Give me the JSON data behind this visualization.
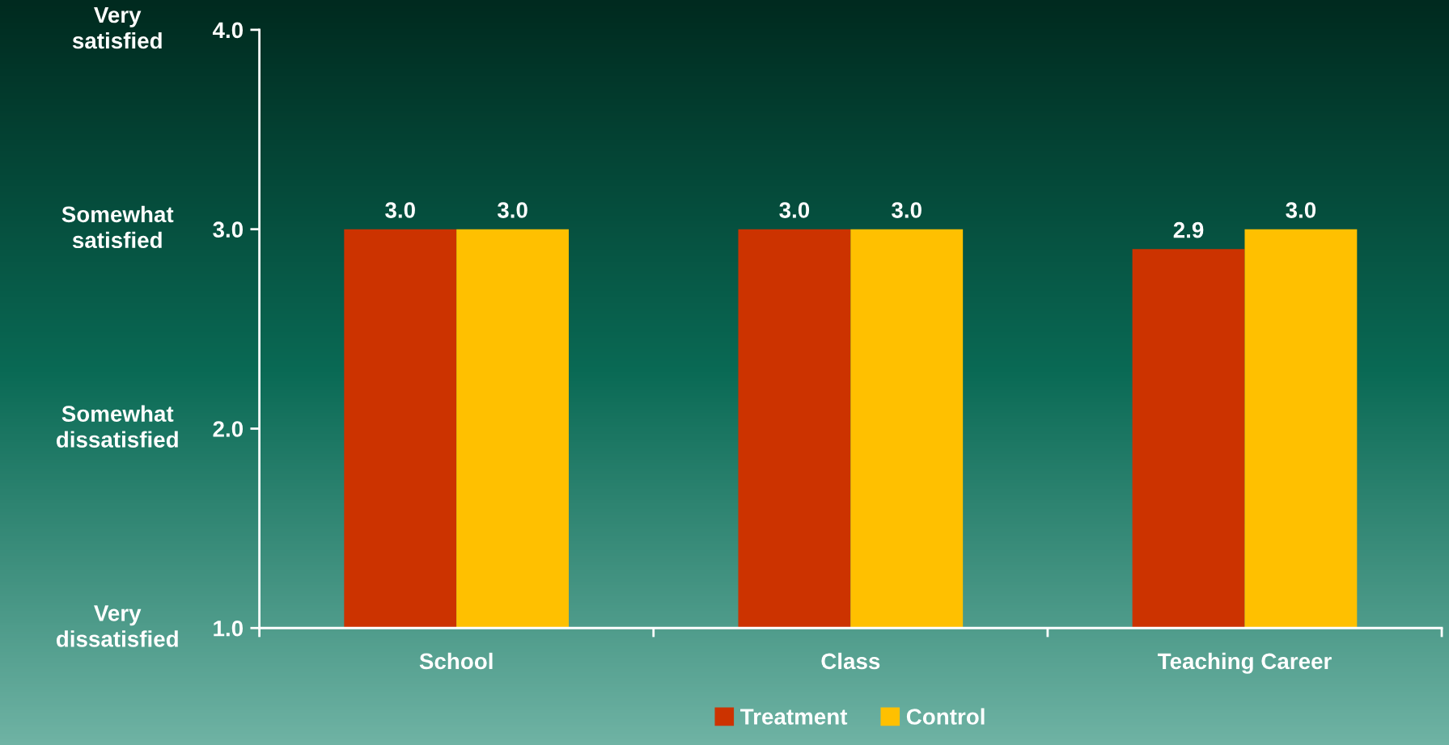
{
  "chart_data": {
    "type": "bar",
    "categories": [
      "School",
      "Class",
      "Teaching Career"
    ],
    "series": [
      {
        "name": "Treatment",
        "color": "#cc3300",
        "values": [
          3.0,
          3.0,
          2.9
        ],
        "value_labels": [
          "3.0",
          "3.0",
          "2.9"
        ]
      },
      {
        "name": "Control",
        "color": "#ffc000",
        "values": [
          3.0,
          3.0,
          3.0
        ],
        "value_labels": [
          "3.0",
          "3.0",
          "3.0"
        ]
      }
    ],
    "ylim": [
      1.0,
      4.0
    ],
    "yticks": [
      {
        "value": 1.0,
        "label": "1.0"
      },
      {
        "value": 2.0,
        "label": "2.0"
      },
      {
        "value": 3.0,
        "label": "3.0"
      },
      {
        "value": 4.0,
        "label": "4.0"
      }
    ],
    "annotations": [
      "Very\ndissatisfied",
      "Somewhat\ndissatisfied",
      "Somewhat\nsatisfied",
      "Very\nsatisfied"
    ],
    "grid": false,
    "legend": "bottom"
  }
}
